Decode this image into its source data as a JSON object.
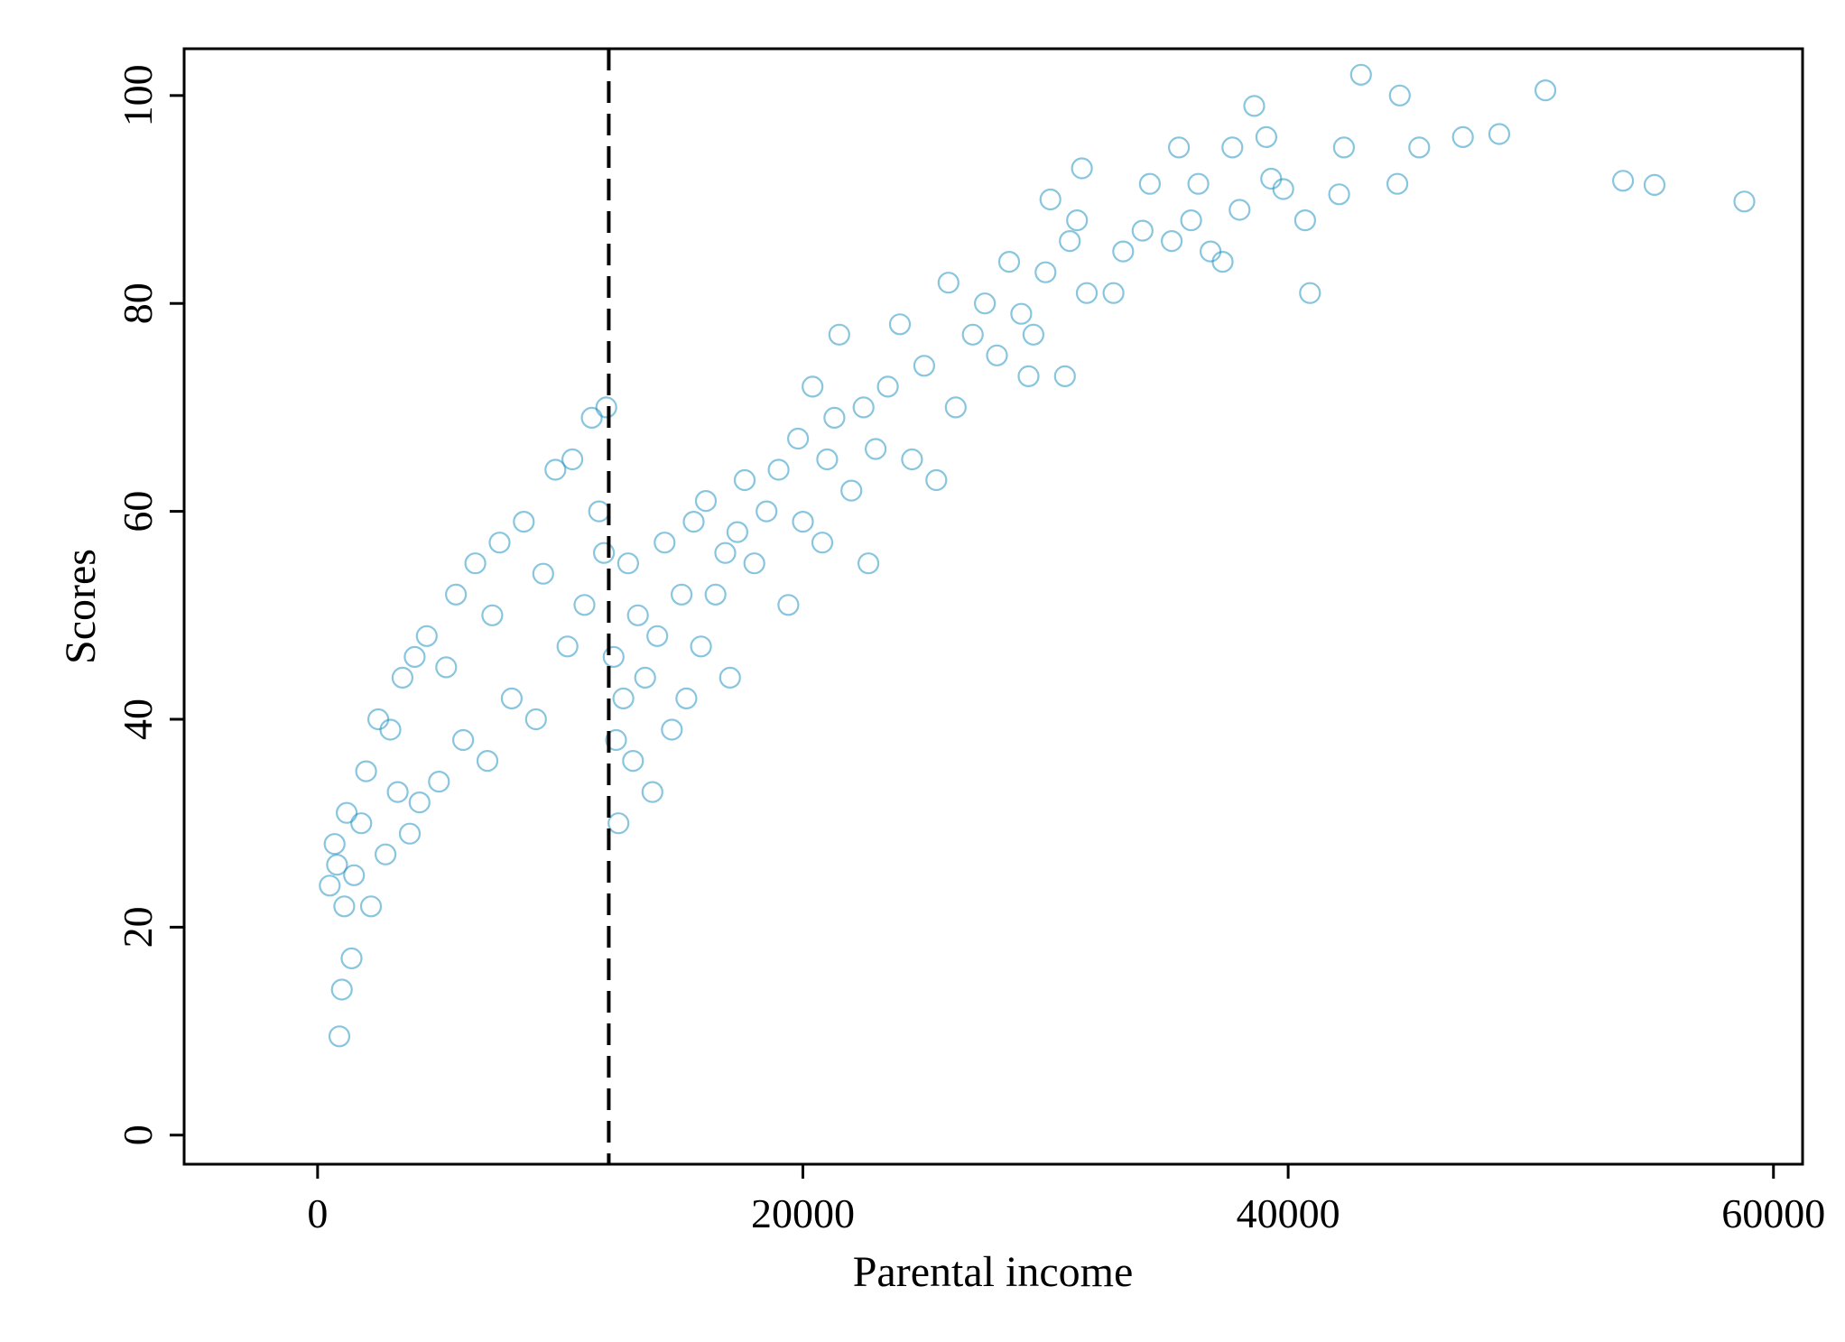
{
  "chart_data": {
    "type": "scatter",
    "title": "",
    "xlabel": "Parental income",
    "ylabel": "Scores",
    "xlim": [
      -5500,
      61200
    ],
    "ylim": [
      -2.8,
      104.5
    ],
    "xticks": [
      0,
      20000,
      40000,
      60000
    ],
    "xtick_labels": [
      "0",
      "20000",
      "40000",
      "60000"
    ],
    "yticks": [
      0,
      20,
      40,
      60,
      80,
      100
    ],
    "ytick_labels": [
      "0",
      "20",
      "40",
      "60",
      "80",
      "100"
    ],
    "grid": false,
    "legend": "none",
    "marker": "hollow-circle",
    "marker_color": "#1a8fc0",
    "marker_opacity": 0.13,
    "threshold_line": {
      "x": 12000,
      "style": "dashed",
      "color": "#000000"
    },
    "series": [
      {
        "points": [
          [
            500,
            24
          ],
          [
            700,
            28
          ],
          [
            800,
            26
          ],
          [
            900,
            9.5
          ],
          [
            1000,
            14
          ],
          [
            1100,
            22
          ],
          [
            1200,
            31
          ],
          [
            1400,
            17
          ],
          [
            1500,
            25
          ],
          [
            1800,
            30
          ],
          [
            2000,
            35
          ],
          [
            2200,
            22
          ],
          [
            2500,
            40
          ],
          [
            2800,
            27
          ],
          [
            3000,
            39
          ],
          [
            3300,
            33
          ],
          [
            3500,
            44
          ],
          [
            3800,
            29
          ],
          [
            4000,
            46
          ],
          [
            4200,
            32
          ],
          [
            4500,
            48
          ],
          [
            5000,
            34
          ],
          [
            5300,
            45
          ],
          [
            5700,
            52
          ],
          [
            6000,
            38
          ],
          [
            6500,
            55
          ],
          [
            7000,
            36
          ],
          [
            7200,
            50
          ],
          [
            7500,
            57
          ],
          [
            8000,
            42
          ],
          [
            8500,
            59
          ],
          [
            9000,
            40
          ],
          [
            9300,
            54
          ],
          [
            9800,
            64
          ],
          [
            10300,
            47
          ],
          [
            10500,
            65
          ],
          [
            11000,
            51
          ],
          [
            11300,
            69
          ],
          [
            11600,
            60
          ],
          [
            11800,
            56
          ],
          [
            11900,
            70
          ],
          [
            12200,
            46
          ],
          [
            12300,
            38
          ],
          [
            12400,
            30
          ],
          [
            12600,
            42
          ],
          [
            12800,
            55
          ],
          [
            13000,
            36
          ],
          [
            13200,
            50
          ],
          [
            13500,
            44
          ],
          [
            13800,
            33
          ],
          [
            14000,
            48
          ],
          [
            14300,
            57
          ],
          [
            14600,
            39
          ],
          [
            15000,
            52
          ],
          [
            15200,
            42
          ],
          [
            15500,
            59
          ],
          [
            15800,
            47
          ],
          [
            16000,
            61
          ],
          [
            16400,
            52
          ],
          [
            16800,
            56
          ],
          [
            17000,
            44
          ],
          [
            17300,
            58
          ],
          [
            17600,
            63
          ],
          [
            18000,
            55
          ],
          [
            18500,
            60
          ],
          [
            19000,
            64
          ],
          [
            19400,
            51
          ],
          [
            19800,
            67
          ],
          [
            20000,
            59
          ],
          [
            20400,
            72
          ],
          [
            20800,
            57
          ],
          [
            21000,
            65
          ],
          [
            21300,
            69
          ],
          [
            21500,
            77
          ],
          [
            22000,
            62
          ],
          [
            22500,
            70
          ],
          [
            22700,
            55
          ],
          [
            23000,
            66
          ],
          [
            23500,
            72
          ],
          [
            24000,
            78
          ],
          [
            24500,
            65
          ],
          [
            25000,
            74
          ],
          [
            25500,
            63
          ],
          [
            26000,
            82
          ],
          [
            26300,
            70
          ],
          [
            27000,
            77
          ],
          [
            27500,
            80
          ],
          [
            28000,
            75
          ],
          [
            28500,
            84
          ],
          [
            29000,
            79
          ],
          [
            29300,
            73
          ],
          [
            29500,
            77
          ],
          [
            30000,
            83
          ],
          [
            30200,
            90
          ],
          [
            30800,
            73
          ],
          [
            31000,
            86
          ],
          [
            31300,
            88
          ],
          [
            31500,
            93
          ],
          [
            31700,
            81
          ],
          [
            32800,
            81
          ],
          [
            33200,
            85
          ],
          [
            34000,
            87
          ],
          [
            34300,
            91.5
          ],
          [
            35200,
            86
          ],
          [
            35500,
            95
          ],
          [
            36000,
            88
          ],
          [
            36300,
            91.5
          ],
          [
            36800,
            85
          ],
          [
            37300,
            84
          ],
          [
            37700,
            95
          ],
          [
            38000,
            89
          ],
          [
            38600,
            99
          ],
          [
            39100,
            96
          ],
          [
            39300,
            92
          ],
          [
            39800,
            91
          ],
          [
            40700,
            88
          ],
          [
            40900,
            81
          ],
          [
            42100,
            90.5
          ],
          [
            42300,
            95
          ],
          [
            43000,
            102
          ],
          [
            44500,
            91.5
          ],
          [
            44600,
            100
          ],
          [
            45400,
            95
          ],
          [
            47200,
            96
          ],
          [
            48700,
            96.3
          ],
          [
            50600,
            100.5
          ],
          [
            53800,
            91.8
          ],
          [
            55100,
            91.4
          ],
          [
            58800,
            89.8
          ]
        ]
      }
    ]
  }
}
